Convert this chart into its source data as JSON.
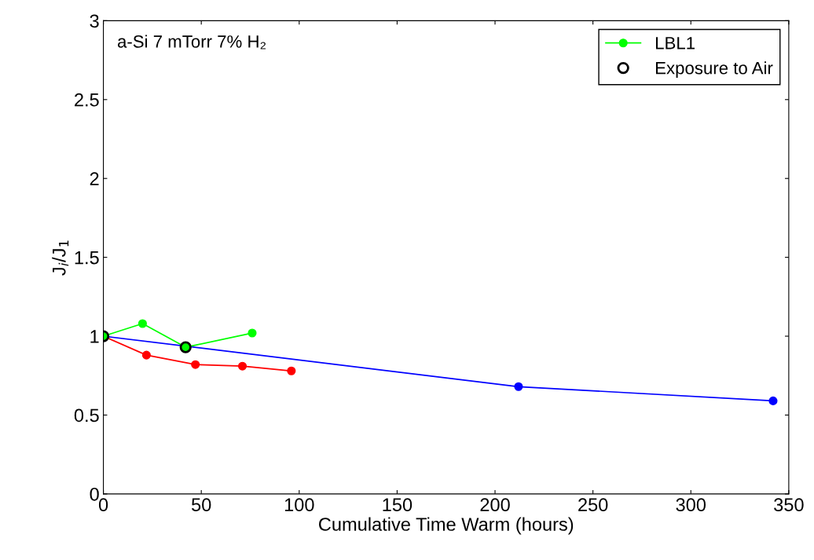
{
  "chart_data": {
    "type": "line",
    "xlabel": "Cumulative Time Warm (hours)",
    "ylabel": "J$_{i}$/J$_{1}$",
    "annotations": [
      "a-Si 7 mTorr 7% H₂"
    ],
    "xlim": [
      0,
      350
    ],
    "xticks": [
      0,
      50,
      100,
      150,
      200,
      250,
      300,
      350
    ],
    "ylim": [
      0,
      3
    ],
    "yticks": [
      0,
      0.5,
      1,
      1.5,
      2,
      2.5,
      3
    ],
    "grid": false,
    "legend": "top right",
    "marker": "circle",
    "line_style": "solid",
    "series": [
      {
        "color": "#0000ff",
        "x": [
          0,
          212,
          342
        ],
        "values": [
          1.0,
          0.68,
          0.59
        ]
      },
      {
        "color": "#ff0000",
        "x": [
          0,
          22,
          47,
          71,
          96
        ],
        "values": [
          1.0,
          0.88,
          0.82,
          0.81,
          0.78
        ]
      },
      {
        "name": "LBL1",
        "color": "#00ff00",
        "x": [
          0,
          20,
          42,
          76
        ],
        "values": [
          1.0,
          1.08,
          0.93,
          1.02
        ]
      },
      {
        "name": "Exposure to Air",
        "type": "scatter",
        "color": "#000000",
        "x": [
          0,
          42
        ],
        "values": [
          1.0,
          0.93
        ]
      }
    ]
  }
}
